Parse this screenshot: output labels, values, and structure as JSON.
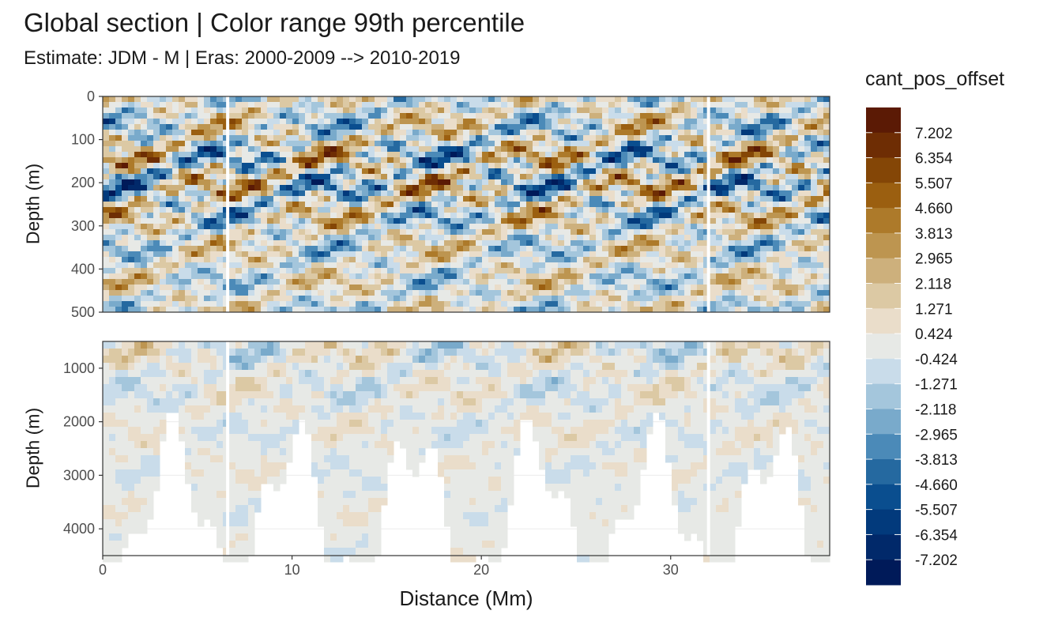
{
  "chart_data": {
    "type": "heatmap",
    "title": "Global section | Color range 99th percentile",
    "subtitle": "Estimate: JDM - M | Eras: 2000-2009 --> 2010-2019",
    "xlabel": "Distance (Mm)",
    "ylabel": "Depth (m)",
    "xlim": [
      0,
      38.4
    ],
    "x_ticks": [
      "0",
      "10",
      "20",
      "30"
    ],
    "panels": [
      {
        "name": "upper",
        "ylim": [
          0,
          500
        ],
        "y_reversed": true,
        "y_ticks": [
          "0",
          "100",
          "200",
          "300",
          "400",
          "500"
        ]
      },
      {
        "name": "lower",
        "ylim": [
          500,
          4500
        ],
        "y_reversed": true,
        "y_ticks": [
          "1000",
          "2000",
          "3000",
          "4000"
        ]
      }
    ],
    "legend": {
      "title": "cant_pos_offset",
      "position": "right",
      "labels": [
        "7.202",
        "6.354",
        "5.507",
        "4.660",
        "3.813",
        "2.965",
        "2.118",
        "1.271",
        "0.424",
        "-0.424",
        "-1.271",
        "-2.118",
        "-2.965",
        "-3.813",
        "-4.660",
        "-5.507",
        "-6.354",
        "-7.202"
      ],
      "colors": [
        "#5b1a05",
        "#6e2d04",
        "#844606",
        "#9b5f10",
        "#ad7a2a",
        "#bd9550",
        "#cdb07c",
        "#dcc9a4",
        "#eaddca",
        "#e7e9e6",
        "#c9dcea",
        "#a4c6dc",
        "#79aacb",
        "#4b8ab8",
        "#2569a0",
        "#0a4e8f",
        "#023a7c",
        "#01296a",
        "#001a59"
      ]
    },
    "grid": true,
    "colorbar": "bottom-to-top diverging brown-to-blue"
  }
}
